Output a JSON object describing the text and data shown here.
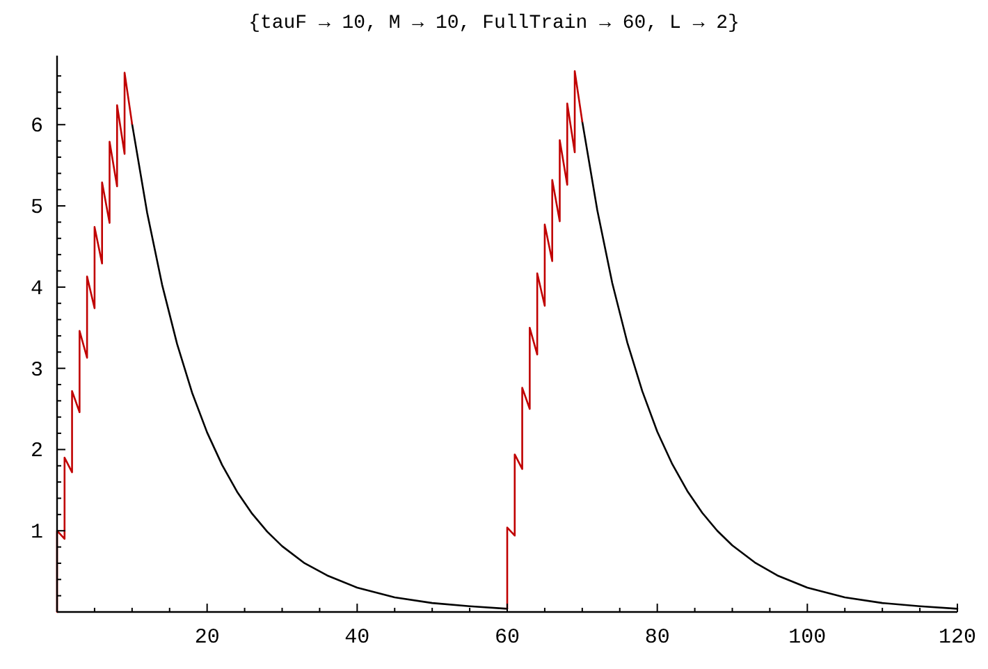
{
  "chart_data": {
    "type": "line",
    "title": "{tauF → 10, M → 10, FullTrain → 60, L → 2}",
    "xlim": [
      0,
      120
    ],
    "ylim": [
      0,
      6.85
    ],
    "xticks": [
      {
        "value": 5,
        "label": null
      },
      {
        "value": 10,
        "label": null
      },
      {
        "value": 15,
        "label": null
      },
      20,
      {
        "value": 25,
        "label": null
      },
      {
        "value": 30,
        "label": null
      },
      {
        "value": 35,
        "label": null
      },
      40,
      {
        "value": 45,
        "label": null
      },
      {
        "value": 50,
        "label": null
      },
      {
        "value": 55,
        "label": null
      },
      60,
      {
        "value": 65,
        "label": null
      },
      {
        "value": 70,
        "label": null
      },
      {
        "value": 75,
        "label": null
      },
      80,
      {
        "value": 85,
        "label": null
      },
      {
        "value": 90,
        "label": null
      },
      {
        "value": 95,
        "label": null
      },
      100,
      {
        "value": 105,
        "label": null
      },
      {
        "value": 110,
        "label": null
      },
      {
        "value": 115,
        "label": null
      },
      120
    ],
    "yticks": [
      {
        "value": 0.2,
        "label": null
      },
      {
        "value": 0.4,
        "label": null
      },
      {
        "value": 0.6,
        "label": null
      },
      {
        "value": 0.8,
        "label": null
      },
      1,
      {
        "value": 1.2,
        "label": null
      },
      {
        "value": 1.4,
        "label": null
      },
      {
        "value": 1.6,
        "label": null
      },
      {
        "value": 1.8,
        "label": null
      },
      2,
      {
        "value": 2.2,
        "label": null
      },
      {
        "value": 2.4,
        "label": null
      },
      {
        "value": 2.6,
        "label": null
      },
      {
        "value": 2.8,
        "label": null
      },
      3,
      {
        "value": 3.2,
        "label": null
      },
      {
        "value": 3.4,
        "label": null
      },
      {
        "value": 3.6,
        "label": null
      },
      {
        "value": 3.8,
        "label": null
      },
      4,
      {
        "value": 4.2,
        "label": null
      },
      {
        "value": 4.4,
        "label": null
      },
      {
        "value": 4.6,
        "label": null
      },
      {
        "value": 4.8,
        "label": null
      },
      5,
      {
        "value": 5.2,
        "label": null
      },
      {
        "value": 5.4,
        "label": null
      },
      {
        "value": 5.6,
        "label": null
      },
      {
        "value": 5.8,
        "label": null
      },
      6,
      {
        "value": 6.2,
        "label": null
      },
      {
        "value": 6.4,
        "label": null
      },
      {
        "value": 6.6,
        "label": null
      }
    ],
    "grid": false,
    "marker": "none",
    "line_style": "solid",
    "series": [
      {
        "color": "#000000",
        "x": [
          10,
          12,
          14,
          16,
          18,
          20,
          22,
          24,
          26,
          28,
          30,
          33,
          36,
          40,
          45,
          50,
          55,
          60,
          null,
          70,
          72,
          74,
          76,
          78,
          80,
          82,
          84,
          86,
          88,
          90,
          93,
          96,
          100,
          105,
          110,
          115,
          120
        ],
        "values": [
          6.01,
          4.92,
          4.03,
          3.3,
          2.7,
          2.21,
          1.81,
          1.48,
          1.21,
          0.99,
          0.81,
          0.6,
          0.45,
          0.3,
          0.18,
          0.11,
          0.07,
          0.04,
          null,
          6.04,
          4.95,
          4.05,
          3.32,
          2.72,
          2.22,
          1.82,
          1.49,
          1.22,
          1.0,
          0.82,
          0.61,
          0.45,
          0.3,
          0.18,
          0.11,
          0.07,
          0.04
        ]
      },
      {
        "color": "#c00000",
        "x": [
          0,
          0,
          1,
          1,
          2,
          2,
          3,
          3,
          4,
          4,
          5,
          5,
          6,
          6,
          7,
          7,
          8,
          8,
          9,
          9,
          10,
          null,
          60,
          60,
          61,
          61,
          62,
          62,
          63,
          63,
          64,
          64,
          65,
          65,
          66,
          66,
          67,
          67,
          68,
          68,
          69,
          69,
          70
        ],
        "values": [
          0,
          1,
          0.9,
          1.9,
          1.72,
          2.72,
          2.46,
          3.46,
          3.13,
          4.13,
          3.74,
          4.74,
          4.29,
          5.29,
          4.79,
          5.79,
          5.24,
          6.24,
          5.64,
          6.64,
          6.01,
          null,
          0.04,
          1.04,
          0.94,
          1.94,
          1.76,
          2.76,
          2.5,
          3.5,
          3.17,
          4.17,
          3.77,
          4.77,
          4.32,
          5.32,
          4.81,
          5.81,
          5.26,
          6.26,
          5.66,
          6.66,
          6.04
        ]
      }
    ]
  }
}
